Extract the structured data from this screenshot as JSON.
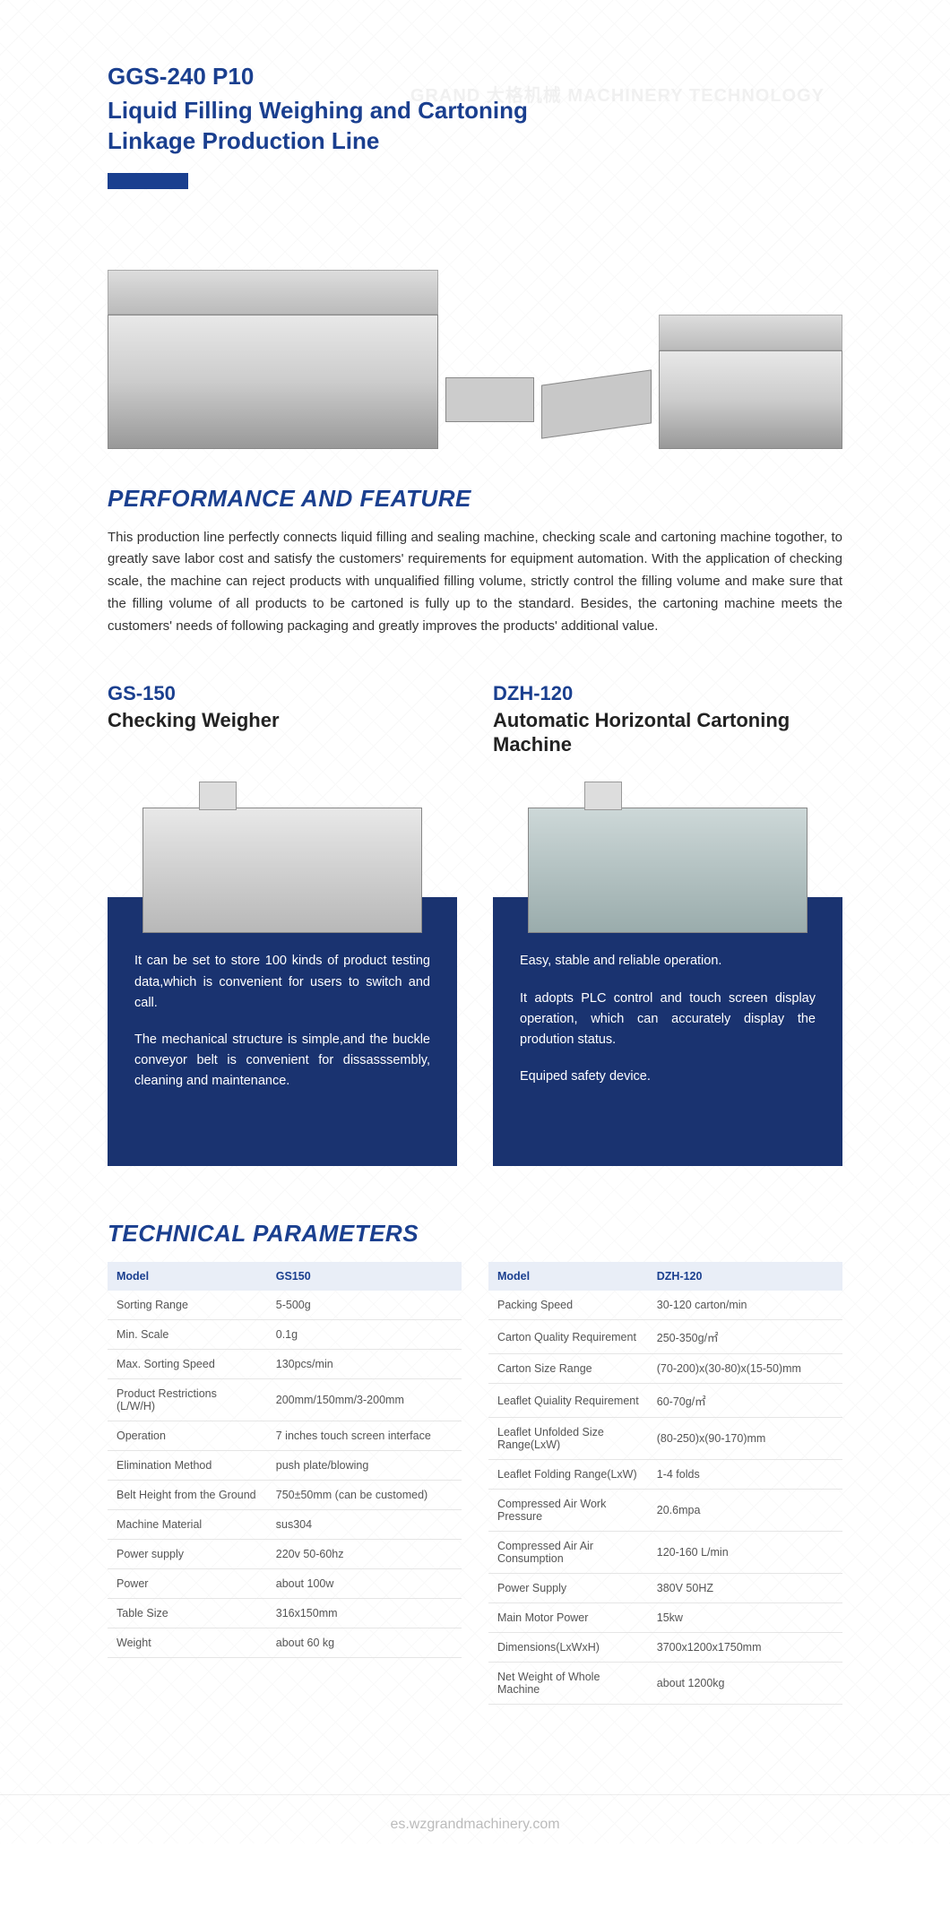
{
  "colors": {
    "brand_blue": "#1a3f8f",
    "box_blue": "#1a3370",
    "header_bg": "#e9eef7",
    "text": "#333333",
    "muted": "#555555",
    "footer": "#bbbbbb"
  },
  "header": {
    "model": "GGS-240 P10",
    "title_line1": "Liquid Filling Weighing and Cartoning",
    "title_line2": "Linkage Production Line"
  },
  "watermark": "GRAND 大格机械 MACHINERY TECHNOLOGY",
  "performance": {
    "heading": "PERFORMANCE AND FEATURE",
    "text": "This production line perfectly connects liquid filling and sealing machine, checking scale and cartoning machine togother, to greatly save labor cost and satisfy the customers' requirements for equipment automation. With the application of checking scale, the machine can reject products with unqualified filling volume, strictly control the filling volume and make sure that the filling volume of all products to be cartoned is fully up to the standard. Besides, the cartoning machine meets the customers' needs of following packaging and greatly improves the products' additional value."
  },
  "machines": [
    {
      "model": "GS-150",
      "name": "Checking Weigher",
      "desc": [
        "It can be set to store 100 kinds of product testing data,which is convenient for users to switch and call.",
        "The mechanical structure is simple,and the buckle conveyor belt is convenient for dissasssembly, cleaning and maintenance."
      ]
    },
    {
      "model": "DZH-120",
      "name": "Automatic Horizontal Cartoning Machine",
      "desc": [
        "Easy, stable and reliable operation.",
        "It adopts PLC control and touch screen display operation, which can accurately display the prodution status.",
        "Equiped safety device."
      ]
    }
  ],
  "tech": {
    "heading": "TECHNICAL PARAMETERS",
    "tables": [
      {
        "header": [
          "Model",
          "GS150"
        ],
        "rows": [
          [
            "Sorting Range",
            "5-500g"
          ],
          [
            "Min. Scale",
            "0.1g"
          ],
          [
            "Max. Sorting Speed",
            "130pcs/min"
          ],
          [
            "Product Restrictions (L/W/H)",
            "200mm/150mm/3-200mm"
          ],
          [
            "Operation",
            "7 inches touch screen interface"
          ],
          [
            "Elimination Method",
            "push plate/blowing"
          ],
          [
            "Belt Height from the Ground",
            "750±50mm (can be customed)"
          ],
          [
            "Machine Material",
            "sus304"
          ],
          [
            "Power supply",
            "220v 50-60hz"
          ],
          [
            "Power",
            "about 100w"
          ],
          [
            "Table Size",
            "316x150mm"
          ],
          [
            "Weight",
            "about 60 kg"
          ]
        ]
      },
      {
        "header": [
          "Model",
          "DZH-120"
        ],
        "rows": [
          [
            "Packing Speed",
            "30-120 carton/min"
          ],
          [
            "Carton Quality Requirement",
            "250-350g/㎡"
          ],
          [
            "Carton Size Range",
            "(70-200)x(30-80)x(15-50)mm"
          ],
          [
            "Leaflet Quiality Requirement",
            "60-70g/㎡"
          ],
          [
            "Leaflet Unfolded Size Range(LxW)",
            "(80-250)x(90-170)mm"
          ],
          [
            "Leaflet Folding Range(LxW)",
            "1-4 folds"
          ],
          [
            "Compressed Air Work Pressure",
            "20.6mpa"
          ],
          [
            "Compressed Air Air Consumption",
            "120-160 L/min"
          ],
          [
            "Power Supply",
            "380V 50HZ"
          ],
          [
            "Main Motor Power",
            "15kw"
          ],
          [
            "Dimensions(LxWxH)",
            "3700x1200x1750mm"
          ],
          [
            "Net Weight of Whole Machine",
            "about 1200kg"
          ]
        ]
      }
    ]
  },
  "footer": "es.wzgrandmachinery.com"
}
